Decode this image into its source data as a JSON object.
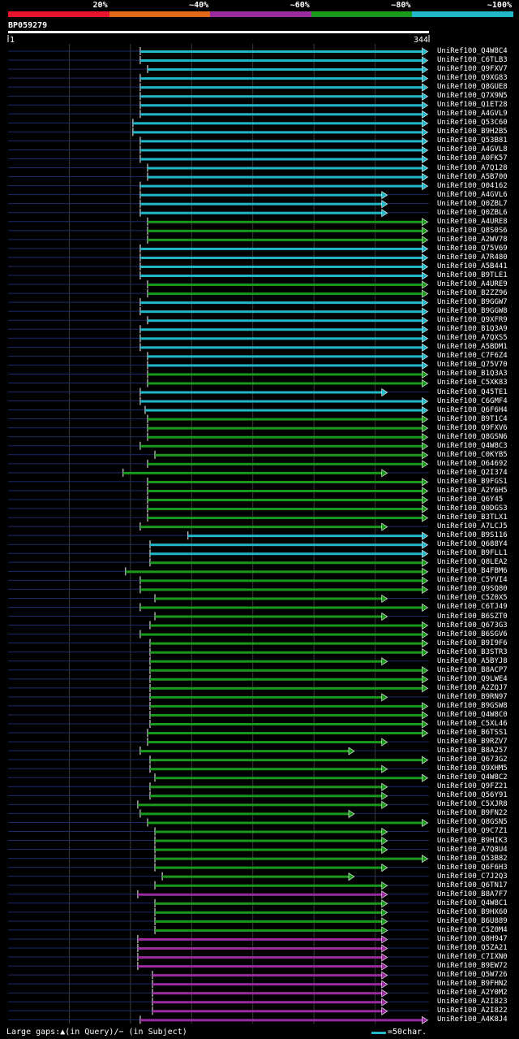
{
  "query": {
    "id": "BP059279",
    "start": "1",
    "end": "344",
    "length": 344
  },
  "legend": [
    {
      "label": "20%",
      "color": "#e8142e"
    },
    {
      "label": "~40%",
      "color": "#e06a1a"
    },
    {
      "label": "~60%",
      "color": "#9a2aa0"
    },
    {
      "label": "~80%",
      "color": "#1a9a1a"
    },
    {
      "label": "~100%",
      "color": "#20b8c8"
    }
  ],
  "footer": {
    "gaps": "Large gaps:▲(in Query)/− (in Subject)",
    "scale": "=50char."
  },
  "chart_data": {
    "type": "alignment-overview",
    "query_length": 344,
    "scale_chars": 50,
    "hits": [
      {
        "id": "UniRef100_Q4W8C4",
        "start": 108,
        "end": 343,
        "cls": "c"
      },
      {
        "id": "UniRef100_C6TLB3",
        "start": 108,
        "end": 343,
        "cls": "c"
      },
      {
        "id": "UniRef100_Q9FXV7",
        "start": 114,
        "end": 343,
        "cls": "c"
      },
      {
        "id": "UniRef100_Q9XG83",
        "start": 108,
        "end": 343,
        "cls": "c"
      },
      {
        "id": "UniRef100_Q8GUE8",
        "start": 108,
        "end": 343,
        "cls": "c"
      },
      {
        "id": "UniRef100_Q7X9N5",
        "start": 108,
        "end": 343,
        "cls": "c"
      },
      {
        "id": "UniRef100_Q1ET28",
        "start": 108,
        "end": 343,
        "cls": "c"
      },
      {
        "id": "UniRef100_A4GVL9",
        "start": 108,
        "end": 343,
        "cls": "c"
      },
      {
        "id": "UniRef100_Q53C60",
        "start": 102,
        "end": 343,
        "cls": "c"
      },
      {
        "id": "UniRef100_B9H2B5",
        "start": 102,
        "end": 343,
        "cls": "c"
      },
      {
        "id": "UniRef100_Q53B81",
        "start": 108,
        "end": 343,
        "cls": "c"
      },
      {
        "id": "UniRef100_A4GVL8",
        "start": 108,
        "end": 343,
        "cls": "c"
      },
      {
        "id": "UniRef100_A0FK57",
        "start": 108,
        "end": 343,
        "cls": "c"
      },
      {
        "id": "UniRef100_A7Q128",
        "start": 114,
        "end": 343,
        "cls": "c"
      },
      {
        "id": "UniRef100_A5B700",
        "start": 114,
        "end": 343,
        "cls": "c"
      },
      {
        "id": "UniRef100_O04162",
        "start": 108,
        "end": 343,
        "cls": "c"
      },
      {
        "id": "UniRef100_A4GVL6",
        "start": 108,
        "end": 310,
        "cls": "c"
      },
      {
        "id": "UniRef100_Q0ZBL7",
        "start": 108,
        "end": 310,
        "cls": "c"
      },
      {
        "id": "UniRef100_Q0ZBL6",
        "start": 108,
        "end": 310,
        "cls": "c"
      },
      {
        "id": "UniRef100_A4URE8",
        "start": 114,
        "end": 343,
        "cls": "g"
      },
      {
        "id": "UniRef100_Q8S0S6",
        "start": 114,
        "end": 343,
        "cls": "g"
      },
      {
        "id": "UniRef100_A2WV78",
        "start": 114,
        "end": 343,
        "cls": "g"
      },
      {
        "id": "UniRef100_Q75V69",
        "start": 108,
        "end": 343,
        "cls": "c"
      },
      {
        "id": "UniRef100_A7R480",
        "start": 108,
        "end": 343,
        "cls": "c"
      },
      {
        "id": "UniRef100_A5B441",
        "start": 108,
        "end": 343,
        "cls": "c"
      },
      {
        "id": "UniRef100_B9TLE1",
        "start": 108,
        "end": 343,
        "cls": "c"
      },
      {
        "id": "UniRef100_A4URE9",
        "start": 114,
        "end": 343,
        "cls": "g"
      },
      {
        "id": "UniRef100_B2ZZ96",
        "start": 114,
        "end": 343,
        "cls": "g"
      },
      {
        "id": "UniRef100_B9GGW7",
        "start": 108,
        "end": 343,
        "cls": "c"
      },
      {
        "id": "UniRef100_B9GGW8",
        "start": 108,
        "end": 343,
        "cls": "c"
      },
      {
        "id": "UniRef100_Q9XFR9",
        "start": 114,
        "end": 343,
        "cls": "c"
      },
      {
        "id": "UniRef100_B1Q3A9",
        "start": 108,
        "end": 343,
        "cls": "c"
      },
      {
        "id": "UniRef100_A7QXS5",
        "start": 108,
        "end": 343,
        "cls": "c"
      },
      {
        "id": "UniRef100_A5BDM1",
        "start": 108,
        "end": 343,
        "cls": "c"
      },
      {
        "id": "UniRef100_C7F6Z4",
        "start": 114,
        "end": 343,
        "cls": "c"
      },
      {
        "id": "UniRef100_Q75V70",
        "start": 114,
        "end": 343,
        "cls": "c"
      },
      {
        "id": "UniRef100_B1Q3A3",
        "start": 114,
        "end": 343,
        "cls": "g"
      },
      {
        "id": "UniRef100_C5XK83",
        "start": 114,
        "end": 343,
        "cls": "g"
      },
      {
        "id": "UniRef100_Q45TE1",
        "start": 108,
        "end": 310,
        "cls": "c"
      },
      {
        "id": "UniRef100_C6GMF4",
        "start": 108,
        "end": 343,
        "cls": "c"
      },
      {
        "id": "UniRef100_Q6F6H4",
        "start": 112,
        "end": 343,
        "cls": "c"
      },
      {
        "id": "UniRef100_B9T1C4",
        "start": 114,
        "end": 343,
        "cls": "g"
      },
      {
        "id": "UniRef100_Q9FXV6",
        "start": 114,
        "end": 343,
        "cls": "g"
      },
      {
        "id": "UniRef100_Q8GSN6",
        "start": 114,
        "end": 343,
        "cls": "g"
      },
      {
        "id": "UniRef100_Q4W8C3",
        "start": 108,
        "end": 343,
        "cls": "g"
      },
      {
        "id": "UniRef100_C0KYB5",
        "start": 120,
        "end": 343,
        "cls": "g"
      },
      {
        "id": "UniRef100_O64692",
        "start": 114,
        "end": 343,
        "cls": "g"
      },
      {
        "id": "UniRef100_Q2I374",
        "start": 94,
        "end": 310,
        "cls": "g"
      },
      {
        "id": "UniRef100_B9FGS1",
        "start": 114,
        "end": 343,
        "cls": "g"
      },
      {
        "id": "UniRef100_A2Y6H5",
        "start": 114,
        "end": 343,
        "cls": "g"
      },
      {
        "id": "UniRef100_Q6Y45",
        "start": 114,
        "end": 343,
        "cls": "g"
      },
      {
        "id": "UniRef100_Q0DGS3",
        "start": 114,
        "end": 343,
        "cls": "g"
      },
      {
        "id": "UniRef100_B3TLX1",
        "start": 114,
        "end": 343,
        "cls": "g"
      },
      {
        "id": "UniRef100_A7LCJ5",
        "start": 108,
        "end": 310,
        "cls": "g"
      },
      {
        "id": "UniRef100_B9S116",
        "start": 147,
        "end": 343,
        "cls": "c"
      },
      {
        "id": "UniRef100_Q688Y4",
        "start": 116,
        "end": 343,
        "cls": "c"
      },
      {
        "id": "UniRef100_B9FLL1",
        "start": 116,
        "end": 343,
        "cls": "c"
      },
      {
        "id": "UniRef100_Q8LEA2",
        "start": 116,
        "end": 343,
        "cls": "g"
      },
      {
        "id": "UniRef100_B4FBM6",
        "start": 96,
        "end": 343,
        "cls": "g"
      },
      {
        "id": "UniRef100_C5YVI4",
        "start": 108,
        "end": 343,
        "cls": "g"
      },
      {
        "id": "UniRef100_Q9SQ80",
        "start": 108,
        "end": 343,
        "cls": "g"
      },
      {
        "id": "UniRef100_C5Z0X5",
        "start": 120,
        "end": 310,
        "cls": "g"
      },
      {
        "id": "UniRef100_C6TJ49",
        "start": 108,
        "end": 343,
        "cls": "g"
      },
      {
        "id": "UniRef100_B6SZT0",
        "start": 120,
        "end": 310,
        "cls": "g"
      },
      {
        "id": "UniRef100_Q673G3",
        "start": 116,
        "end": 343,
        "cls": "g"
      },
      {
        "id": "UniRef100_B6SGV6",
        "start": 108,
        "end": 343,
        "cls": "g"
      },
      {
        "id": "UniRef100_B9I9F6",
        "start": 116,
        "end": 343,
        "cls": "g"
      },
      {
        "id": "UniRef100_B3STR3",
        "start": 116,
        "end": 343,
        "cls": "g"
      },
      {
        "id": "UniRef100_A5BYJ8",
        "start": 116,
        "end": 310,
        "cls": "g"
      },
      {
        "id": "UniRef100_B8ACP7",
        "start": 116,
        "end": 343,
        "cls": "g"
      },
      {
        "id": "UniRef100_Q9LWE4",
        "start": 116,
        "end": 343,
        "cls": "g"
      },
      {
        "id": "UniRef100_A2ZQJ7",
        "start": 116,
        "end": 343,
        "cls": "g"
      },
      {
        "id": "UniRef100_B9RN97",
        "start": 116,
        "end": 310,
        "cls": "g"
      },
      {
        "id": "UniRef100_B9GSW8",
        "start": 116,
        "end": 343,
        "cls": "g"
      },
      {
        "id": "UniRef100_Q4W8C0",
        "start": 116,
        "end": 343,
        "cls": "g"
      },
      {
        "id": "UniRef100_C5XL46",
        "start": 116,
        "end": 343,
        "cls": "g"
      },
      {
        "id": "UniRef100_B6TSS1",
        "start": 114,
        "end": 343,
        "cls": "g"
      },
      {
        "id": "UniRef100_B9RZV7",
        "start": 114,
        "end": 310,
        "cls": "g"
      },
      {
        "id": "UniRef100_B8A257",
        "start": 108,
        "end": 283,
        "cls": "g"
      },
      {
        "id": "UniRef100_Q673G2",
        "start": 116,
        "end": 343,
        "cls": "g"
      },
      {
        "id": "UniRef100_Q9XHM5",
        "start": 116,
        "end": 310,
        "cls": "g"
      },
      {
        "id": "UniRef100_Q4W8C2",
        "start": 120,
        "end": 343,
        "cls": "g"
      },
      {
        "id": "UniRef100_Q9FZ21",
        "start": 116,
        "end": 310,
        "cls": "g"
      },
      {
        "id": "UniRef100_Q56Y91",
        "start": 116,
        "end": 310,
        "cls": "g"
      },
      {
        "id": "UniRef100_C5XJR8",
        "start": 106,
        "end": 310,
        "cls": "g"
      },
      {
        "id": "UniRef100_B9FN22",
        "start": 108,
        "end": 283,
        "cls": "g"
      },
      {
        "id": "UniRef100_Q8GSN5",
        "start": 114,
        "end": 343,
        "cls": "g"
      },
      {
        "id": "UniRef100_Q9C7Z1",
        "start": 120,
        "end": 310,
        "cls": "g"
      },
      {
        "id": "UniRef100_B9HIK3",
        "start": 120,
        "end": 310,
        "cls": "g"
      },
      {
        "id": "UniRef100_A7Q8U4",
        "start": 120,
        "end": 310,
        "cls": "g"
      },
      {
        "id": "UniRef100_Q53B82",
        "start": 120,
        "end": 343,
        "cls": "g"
      },
      {
        "id": "UniRef100_Q6F6H3",
        "start": 120,
        "end": 310,
        "cls": "g"
      },
      {
        "id": "UniRef100_C7J2Q3",
        "start": 126,
        "end": 283,
        "cls": "g"
      },
      {
        "id": "UniRef100_Q6TN17",
        "start": 120,
        "end": 310,
        "cls": "g"
      },
      {
        "id": "UniRef100_B8A7F7",
        "start": 106,
        "end": 310,
        "cls": "p"
      },
      {
        "id": "UniRef100_Q4W8C1",
        "start": 120,
        "end": 310,
        "cls": "g"
      },
      {
        "id": "UniRef100_B9HX60",
        "start": 120,
        "end": 310,
        "cls": "g"
      },
      {
        "id": "UniRef100_B6U889",
        "start": 120,
        "end": 310,
        "cls": "g"
      },
      {
        "id": "UniRef100_C5Z0M4",
        "start": 120,
        "end": 310,
        "cls": "g"
      },
      {
        "id": "UniRef100_Q8H947",
        "start": 106,
        "end": 310,
        "cls": "p"
      },
      {
        "id": "UniRef100_Q5ZA21",
        "start": 106,
        "end": 310,
        "cls": "p"
      },
      {
        "id": "UniRef100_C7IXN0",
        "start": 106,
        "end": 310,
        "cls": "p"
      },
      {
        "id": "UniRef100_B9EW72",
        "start": 106,
        "end": 310,
        "cls": "p"
      },
      {
        "id": "UniRef100_Q5W726",
        "start": 118,
        "end": 310,
        "cls": "p"
      },
      {
        "id": "UniRef100_B9FHN2",
        "start": 118,
        "end": 310,
        "cls": "p"
      },
      {
        "id": "UniRef100_A2Y0M2",
        "start": 118,
        "end": 310,
        "cls": "p"
      },
      {
        "id": "UniRef100_A2I823",
        "start": 118,
        "end": 310,
        "cls": "p"
      },
      {
        "id": "UniRef100_A2I822",
        "start": 118,
        "end": 310,
        "cls": "p"
      },
      {
        "id": "UniRef100_A4K8J4",
        "start": 108,
        "end": 343,
        "cls": "p"
      }
    ]
  }
}
